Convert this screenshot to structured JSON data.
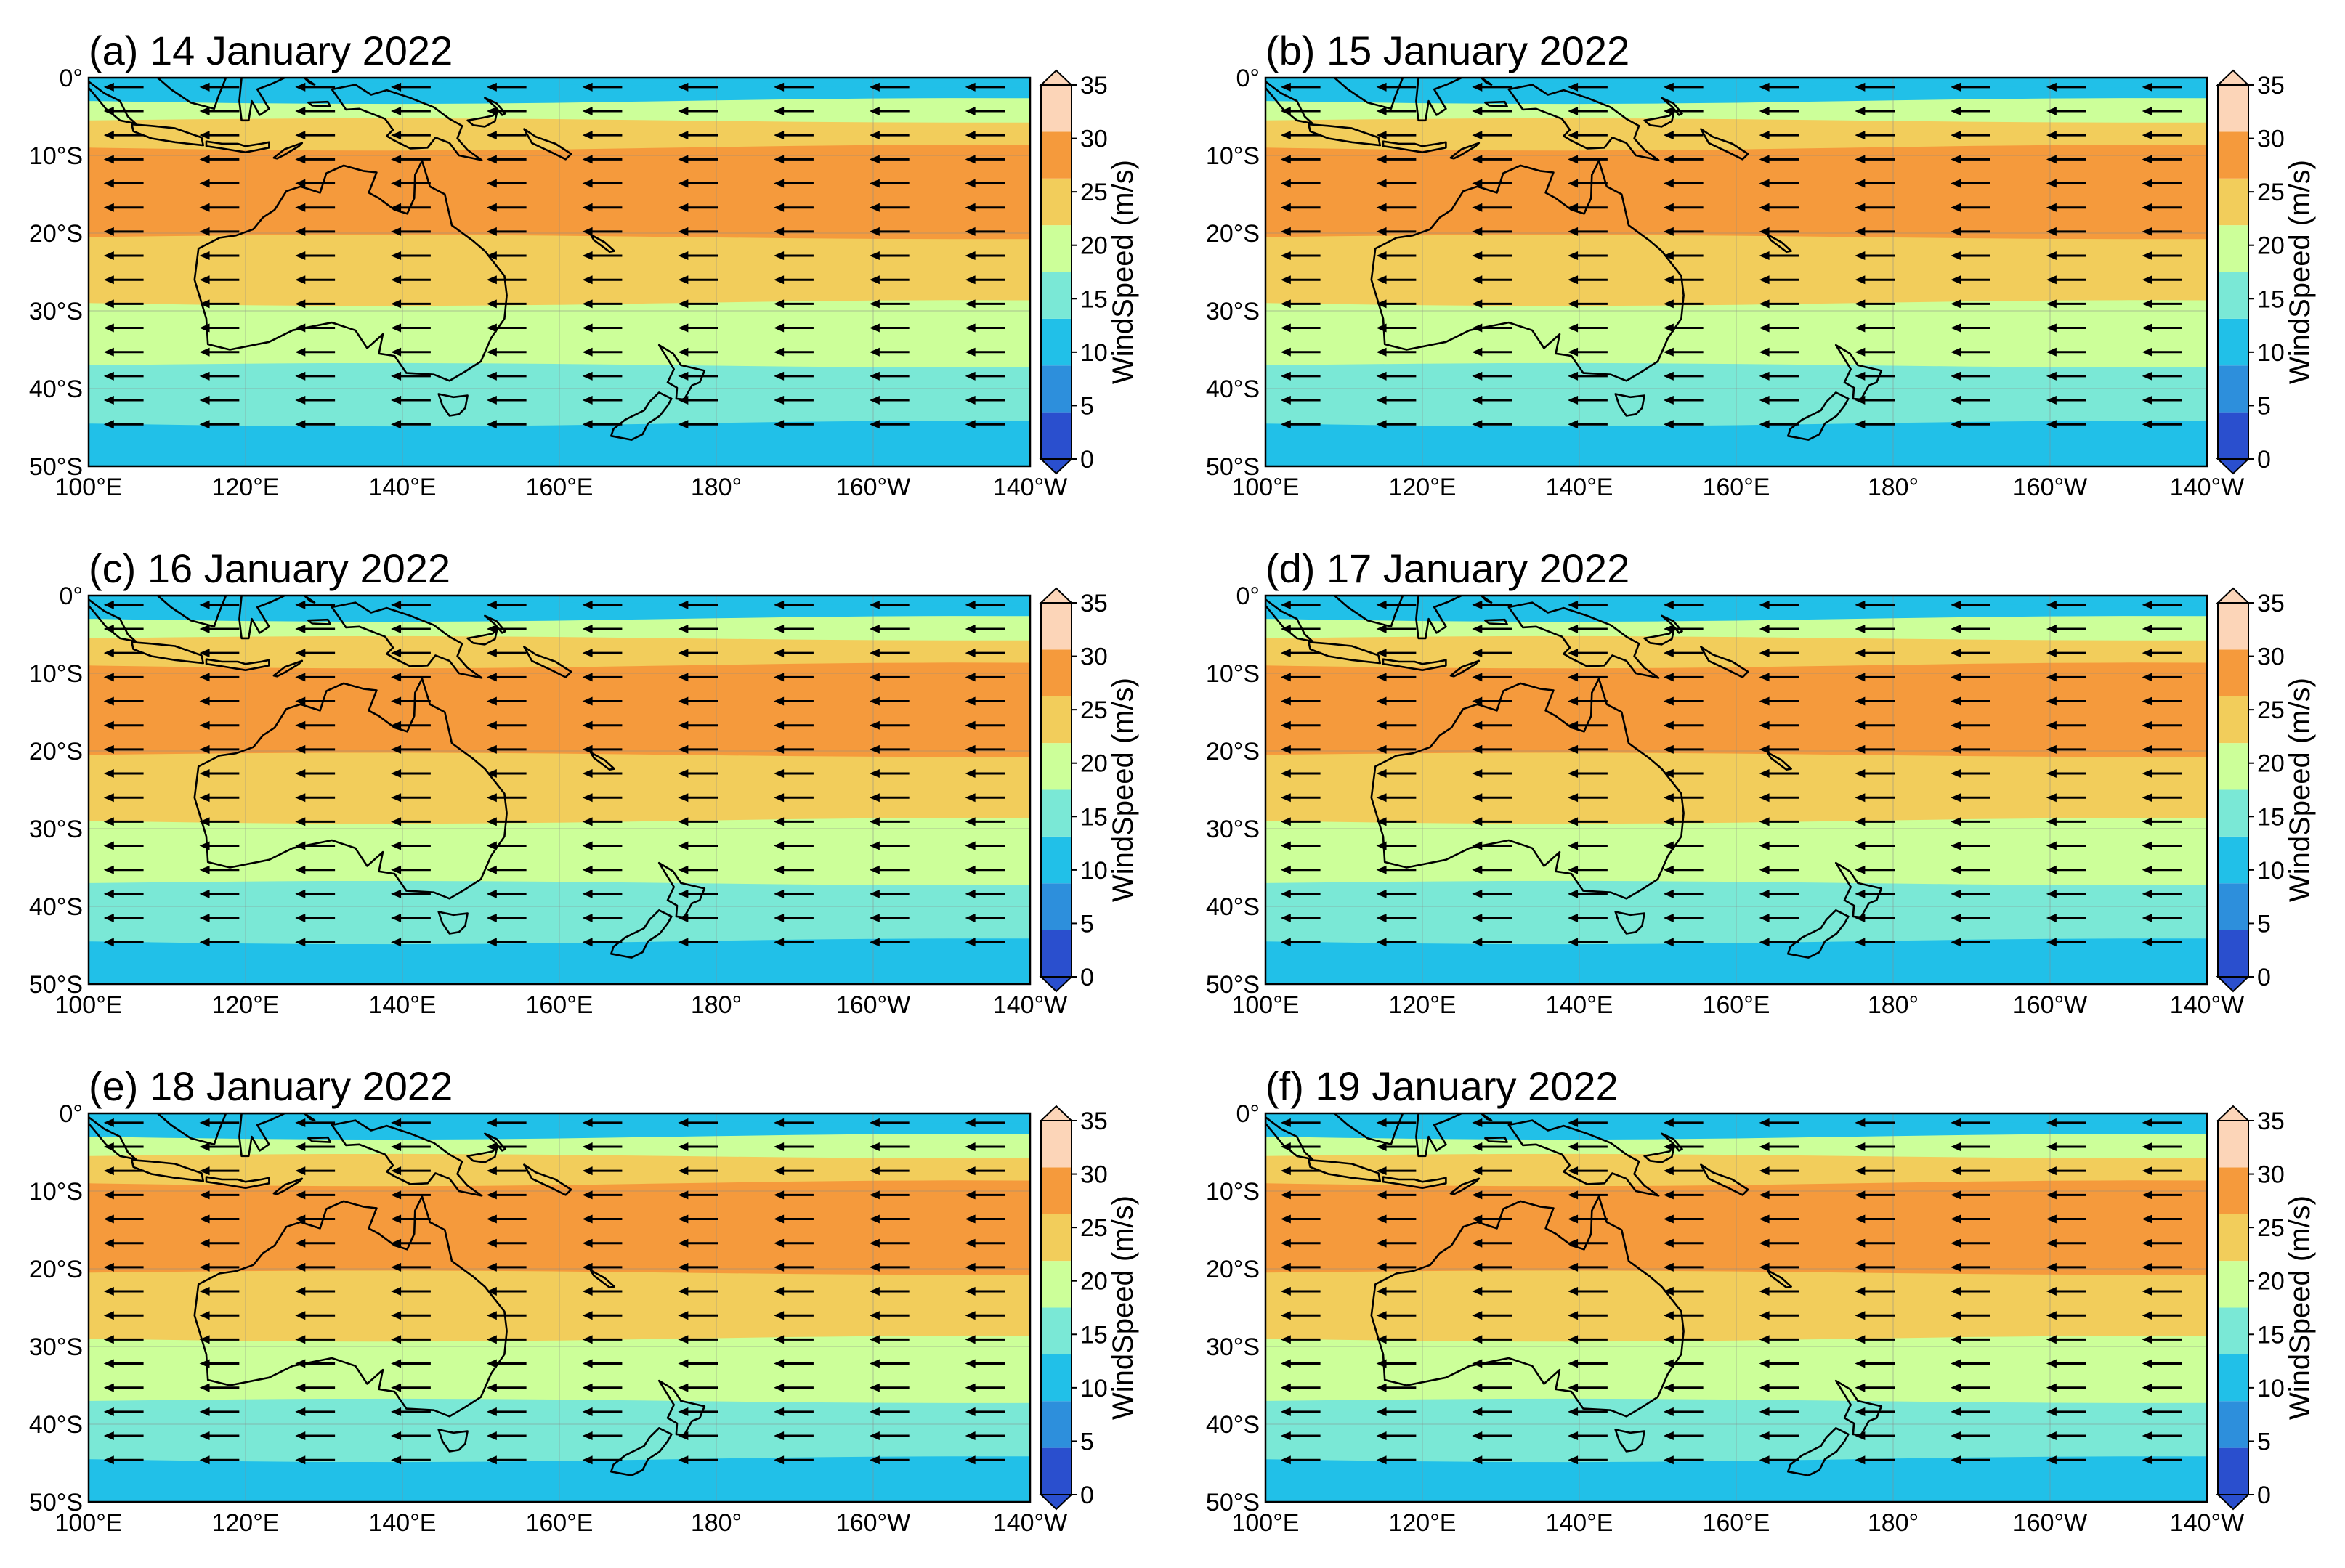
{
  "figure": {
    "colormap": {
      "label": "WindSpeed (m/s)",
      "levels": [
        0,
        5,
        10,
        15,
        20,
        25,
        30,
        35
      ],
      "colors": [
        "#2a4fce",
        "#2d8fdc",
        "#21c0e8",
        "#7ae8d6",
        "#ccff99",
        "#f2cd5b",
        "#f59a3c",
        "#fcd5b8"
      ],
      "tick_labels": [
        "0",
        "5",
        "10",
        "15",
        "20",
        "25",
        "30",
        "35"
      ]
    }
  },
  "chart_data": [
    {
      "type": "heatmap",
      "title": "(a) 14 January 2022",
      "date": "14 January 2022",
      "x_ticks": [
        "100°E",
        "120°E",
        "140°E",
        "160°E",
        "180°",
        "160°W",
        "140°W"
      ],
      "y_ticks": [
        "0°",
        "10°S",
        "20°S",
        "30°S",
        "40°S",
        "50°S"
      ],
      "lon_range": [
        100,
        220
      ],
      "lat_range": [
        0,
        -50
      ],
      "colorbar_label": "WindSpeed (m/s)",
      "band_boundaries_lat": [
        {
          "lat": -1.0,
          "value": 12.5
        },
        {
          "lat": -3.0,
          "value": 22.5
        },
        {
          "lat": -5.5,
          "value": 27.5
        },
        {
          "lat": -9.0,
          "value": 32.5
        },
        {
          "lat": -20.5,
          "value": 27.5
        },
        {
          "lat": -29.0,
          "value": 22.5
        },
        {
          "lat": -37.0,
          "value": 17.5
        },
        {
          "lat": -44.5,
          "value": 12.5
        }
      ],
      "wind_direction": "westward (easterly winds)"
    },
    {
      "type": "heatmap",
      "title": "(b) 15 January 2022",
      "date": "15 January 2022",
      "x_ticks": [
        "100°E",
        "120°E",
        "140°E",
        "160°E",
        "180°",
        "160°W",
        "140°W"
      ],
      "y_ticks": [
        "0°",
        "10°S",
        "20°S",
        "30°S",
        "40°S",
        "50°S"
      ],
      "lon_range": [
        100,
        220
      ],
      "lat_range": [
        0,
        -50
      ],
      "colorbar_label": "WindSpeed (m/s)",
      "band_boundaries_lat": [
        {
          "lat": -1.0,
          "value": 12.5
        },
        {
          "lat": -3.0,
          "value": 22.5
        },
        {
          "lat": -5.5,
          "value": 27.5
        },
        {
          "lat": -9.0,
          "value": 32.5
        },
        {
          "lat": -20.5,
          "value": 27.5
        },
        {
          "lat": -29.0,
          "value": 22.5
        },
        {
          "lat": -37.0,
          "value": 17.5
        },
        {
          "lat": -44.5,
          "value": 12.5
        }
      ],
      "wind_direction": "westward (easterly winds)"
    },
    {
      "type": "heatmap",
      "title": "(c) 16 January 2022",
      "date": "16 January 2022",
      "x_ticks": [
        "100°E",
        "120°E",
        "140°E",
        "160°E",
        "180°",
        "160°W",
        "140°W"
      ],
      "y_ticks": [
        "0°",
        "10°S",
        "20°S",
        "30°S",
        "40°S",
        "50°S"
      ],
      "lon_range": [
        100,
        220
      ],
      "lat_range": [
        0,
        -50
      ],
      "colorbar_label": "WindSpeed (m/s)",
      "band_boundaries_lat": [
        {
          "lat": -1.0,
          "value": 12.5
        },
        {
          "lat": -3.0,
          "value": 22.5
        },
        {
          "lat": -5.5,
          "value": 27.5
        },
        {
          "lat": -9.0,
          "value": 32.5
        },
        {
          "lat": -20.5,
          "value": 27.5
        },
        {
          "lat": -29.0,
          "value": 22.5
        },
        {
          "lat": -37.0,
          "value": 17.5
        },
        {
          "lat": -44.5,
          "value": 12.5
        }
      ],
      "wind_direction": "westward (easterly winds)"
    },
    {
      "type": "heatmap",
      "title": "(d) 17 January 2022",
      "date": "17 January 2022",
      "x_ticks": [
        "100°E",
        "120°E",
        "140°E",
        "160°E",
        "180°",
        "160°W",
        "140°W"
      ],
      "y_ticks": [
        "0°",
        "10°S",
        "20°S",
        "30°S",
        "40°S",
        "50°S"
      ],
      "lon_range": [
        100,
        220
      ],
      "lat_range": [
        0,
        -50
      ],
      "colorbar_label": "WindSpeed (m/s)",
      "band_boundaries_lat": [
        {
          "lat": -1.0,
          "value": 12.5
        },
        {
          "lat": -3.0,
          "value": 22.5
        },
        {
          "lat": -5.5,
          "value": 27.5
        },
        {
          "lat": -9.0,
          "value": 32.5
        },
        {
          "lat": -20.5,
          "value": 27.5
        },
        {
          "lat": -29.0,
          "value": 22.5
        },
        {
          "lat": -37.0,
          "value": 17.5
        },
        {
          "lat": -44.5,
          "value": 12.5
        }
      ],
      "wind_direction": "westward (easterly winds)"
    },
    {
      "type": "heatmap",
      "title": "(e) 18 January 2022",
      "date": "18 January 2022",
      "x_ticks": [
        "100°E",
        "120°E",
        "140°E",
        "160°E",
        "180°",
        "160°W",
        "140°W"
      ],
      "y_ticks": [
        "0°",
        "10°S",
        "20°S",
        "30°S",
        "40°S",
        "50°S"
      ],
      "lon_range": [
        100,
        220
      ],
      "lat_range": [
        0,
        -50
      ],
      "colorbar_label": "WindSpeed (m/s)",
      "band_boundaries_lat": [
        {
          "lat": -1.0,
          "value": 12.5
        },
        {
          "lat": -3.0,
          "value": 22.5
        },
        {
          "lat": -5.5,
          "value": 27.5
        },
        {
          "lat": -9.0,
          "value": 32.5
        },
        {
          "lat": -20.5,
          "value": 27.5
        },
        {
          "lat": -29.0,
          "value": 22.5
        },
        {
          "lat": -37.0,
          "value": 17.5
        },
        {
          "lat": -44.5,
          "value": 12.5
        }
      ],
      "wind_direction": "westward (easterly winds)"
    },
    {
      "type": "heatmap",
      "title": "(f) 19 January 2022",
      "date": "19 January 2022",
      "x_ticks": [
        "100°E",
        "120°E",
        "140°E",
        "160°E",
        "180°",
        "160°W",
        "140°W"
      ],
      "y_ticks": [
        "0°",
        "10°S",
        "20°S",
        "30°S",
        "40°S",
        "50°S"
      ],
      "lon_range": [
        100,
        220
      ],
      "lat_range": [
        0,
        -50
      ],
      "colorbar_label": "WindSpeed (m/s)",
      "band_boundaries_lat": [
        {
          "lat": -1.0,
          "value": 12.5
        },
        {
          "lat": -3.0,
          "value": 22.5
        },
        {
          "lat": -5.5,
          "value": 27.5
        },
        {
          "lat": -9.0,
          "value": 32.5
        },
        {
          "lat": -20.5,
          "value": 27.5
        },
        {
          "lat": -29.0,
          "value": 22.5
        },
        {
          "lat": -37.0,
          "value": 17.5
        },
        {
          "lat": -44.5,
          "value": 12.5
        }
      ],
      "wind_direction": "westward (easterly winds)"
    }
  ]
}
